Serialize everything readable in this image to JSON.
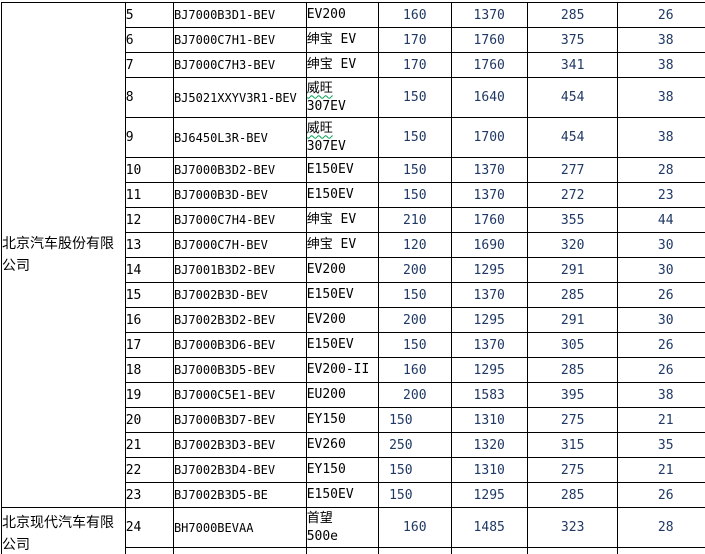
{
  "colors": {
    "background": "#ffffff",
    "grid": "#000000",
    "text": "#000000",
    "number_text": "#1f3864",
    "misspell_underline": "#00a050"
  },
  "table": {
    "sections": [
      {
        "company": "北京汽车股份有限公司",
        "rows": [
          {
            "n": "5",
            "code": "BJ7000B3D1-BEV",
            "name1": "EV200",
            "values": [
              "160",
              "1370",
              "285",
              "26"
            ]
          },
          {
            "n": "6",
            "code": "BJ7000C7H1-BEV",
            "name1": "绅宝 EV",
            "values": [
              "170",
              "1760",
              "375",
              "38"
            ]
          },
          {
            "n": "7",
            "code": "BJ7000C7H3-BEV",
            "name1": "绅宝 EV",
            "values": [
              "170",
              "1760",
              "341",
              "38"
            ]
          },
          {
            "n": "8",
            "code": "BJ5021XXYV3R1-BEV",
            "name1": "威旺",
            "squiggle": true,
            "name2": "307EV",
            "values": [
              "150",
              "1640",
              "454",
              "38"
            ]
          },
          {
            "n": "9",
            "code": "BJ6450L3R-BEV",
            "name1": "威旺",
            "squiggle": true,
            "name2": "307EV",
            "values": [
              "150",
              "1700",
              "454",
              "38"
            ]
          },
          {
            "n": "10",
            "code": "BJ7000B3D2-BEV",
            "name1": "E150EV",
            "values": [
              "150",
              "1370",
              "277",
              "28"
            ]
          },
          {
            "n": "11",
            "code": "BJ7000B3D-BEV",
            "name1": "E150EV",
            "values": [
              "150",
              "1370",
              "272",
              "23"
            ]
          },
          {
            "n": "12",
            "code": "BJ7000C7H4-BEV",
            "name1": "绅宝 EV",
            "values": [
              "210",
              "1760",
              "355",
              "44"
            ]
          },
          {
            "n": "13",
            "code": "BJ7000C7H-BEV",
            "name1": "绅宝 EV",
            "values": [
              "120",
              "1690",
              "320",
              "30"
            ]
          },
          {
            "n": "14",
            "code": "BJ7001B3D2-BEV",
            "name1": "EV200",
            "values": [
              "200",
              "1295",
              "291",
              "30"
            ]
          },
          {
            "n": "15",
            "code": "BJ7002B3D-BEV",
            "name1": "E150EV",
            "values": [
              "150",
              "1370",
              "285",
              "26"
            ]
          },
          {
            "n": "16",
            "code": "BJ7002B3D2-BEV",
            "name1": "EV200",
            "values": [
              "200",
              "1295",
              "291",
              "30"
            ]
          },
          {
            "n": "17",
            "code": "BJ7000B3D6-BEV",
            "name1": "E150EV",
            "values": [
              "150",
              "1370",
              "305",
              "26"
            ]
          },
          {
            "n": "18",
            "code": "BJ7000B3D5-BEV",
            "name1": "EV200-II",
            "values": [
              "160",
              "1295",
              "285",
              "26"
            ]
          },
          {
            "n": "19",
            "code": "BJ7000C5E1-BEV",
            "name1": "EU200",
            "values": [
              "200",
              "1583",
              "395",
              "38"
            ]
          },
          {
            "n": "20",
            "code": "BJ7000B3D7-BEV",
            "name1": "EY150",
            "values": [
              "150",
              "1310",
              "275",
              "21"
            ],
            "v1_left": true
          },
          {
            "n": "21",
            "code": "BJ7002B3D3-BEV",
            "name1": "EV260",
            "values": [
              "250",
              "1320",
              "315",
              "35"
            ],
            "v1_left": true
          },
          {
            "n": "22",
            "code": "BJ7002B3D4-BEV",
            "name1": "EY150",
            "values": [
              "150",
              "1310",
              "275",
              "21"
            ],
            "v1_left": true
          },
          {
            "n": "23",
            "code": "BJ7002B3D5-BE",
            "name1": "E150EV",
            "values": [
              "150",
              "1295",
              "285",
              "26"
            ],
            "v1_left": true
          }
        ]
      },
      {
        "company": "北京现代汽车有限公司",
        "rows": [
          {
            "n": "24",
            "code": "BH7000BEVAA",
            "name1": "首望",
            "name2": "500e",
            "values": [
              "160",
              "1485",
              "323",
              "28"
            ]
          }
        ]
      }
    ]
  }
}
